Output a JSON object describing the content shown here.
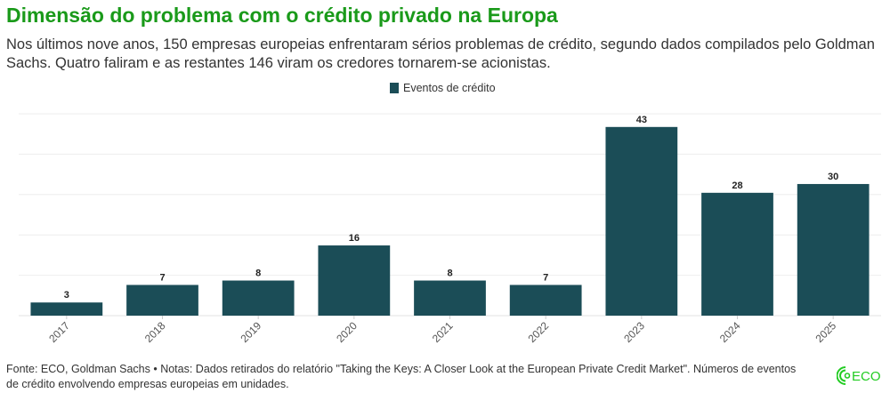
{
  "header": {
    "title": "Dimensão do problema com o crédito privado na Europa",
    "subtitle": "Nos últimos nove anos, 150 empresas europeias enfrentaram sérios problemas de crédito, segundo dados compilados pelo Goldman Sachs. Quatro faliram e as restantes 146 viram os credores tornarem-se acionistas."
  },
  "chart_data": {
    "type": "bar",
    "categories": [
      "2017",
      "2018",
      "2019",
      "2020",
      "2021",
      "2022",
      "2023",
      "2024",
      "2025"
    ],
    "series": [
      {
        "name": "Eventos de crédito",
        "values": [
          3,
          7,
          8,
          16,
          8,
          7,
          43,
          28,
          30
        ],
        "color": "#1b4d57"
      }
    ],
    "ylim": [
      0,
      46
    ],
    "grid": true,
    "legend": "top-center",
    "data_labels": true
  },
  "footer": {
    "note": "Fonte: ECO, Goldman Sachs • Notas: Dados retirados do relatório \"Taking the Keys: A Closer Look at the European Private Credit Market\". Números de eventos de crédito envolvendo empresas europeias em unidades."
  },
  "logo": {
    "text": "ECO",
    "color": "#22cc22"
  }
}
